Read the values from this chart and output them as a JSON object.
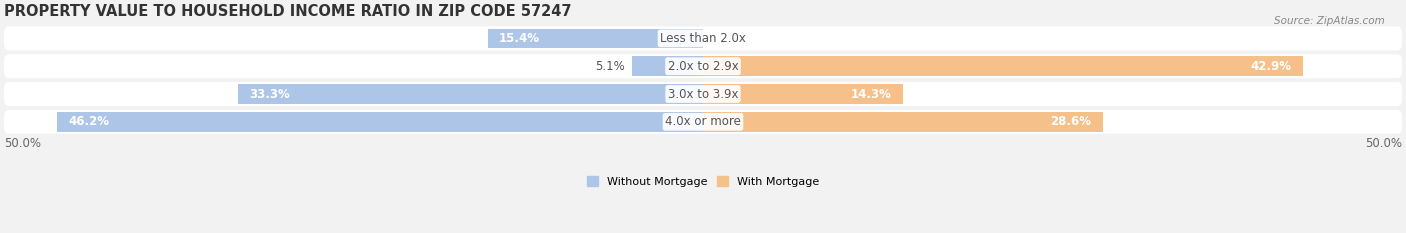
{
  "title": "PROPERTY VALUE TO HOUSEHOLD INCOME RATIO IN ZIP CODE 57247",
  "source": "Source: ZipAtlas.com",
  "categories": [
    "Less than 2.0x",
    "2.0x to 2.9x",
    "3.0x to 3.9x",
    "4.0x or more"
  ],
  "without_mortgage": [
    15.4,
    5.1,
    33.3,
    46.2
  ],
  "with_mortgage": [
    0.0,
    42.9,
    14.3,
    28.6
  ],
  "color_without": "#adc6e8",
  "color_with": "#f5c08a",
  "x_axis_label_left": "50.0%",
  "x_axis_label_right": "50.0%",
  "bg_color": "#f2f2f2",
  "bar_row_color": "#e8e8e8",
  "legend_labels": [
    "Without Mortgage",
    "With Mortgage"
  ],
  "title_fontsize": 10.5,
  "label_fontsize": 8.5,
  "value_fontsize": 8.5
}
